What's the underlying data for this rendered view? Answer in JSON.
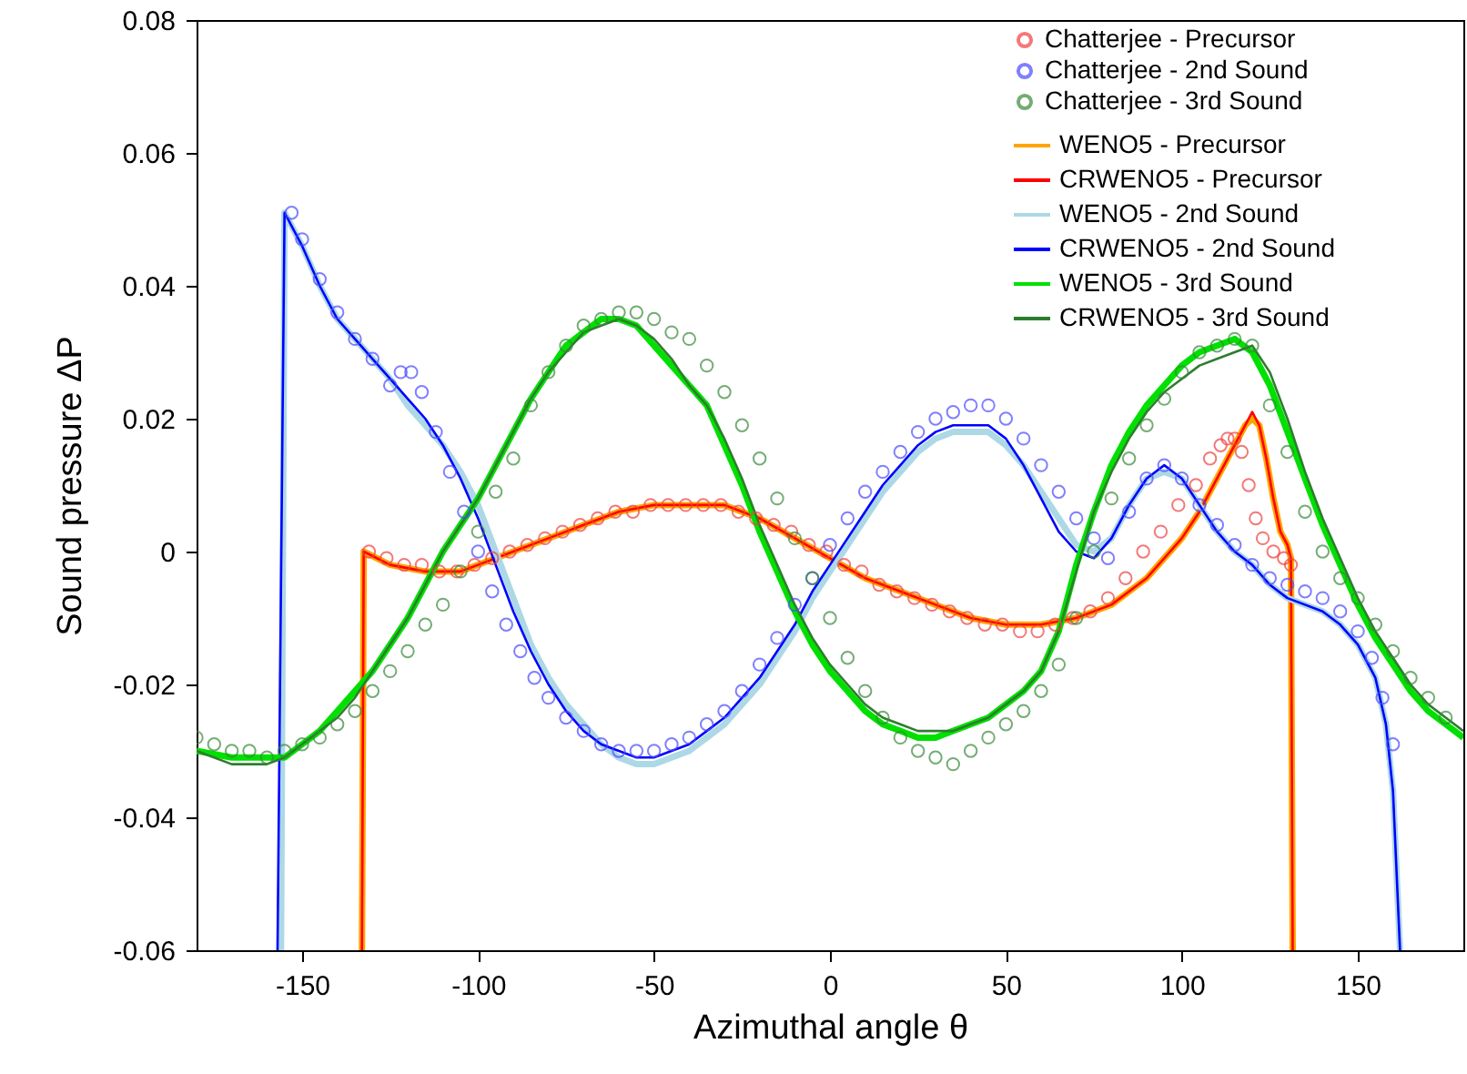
{
  "chart_data": {
    "type": "line",
    "xlabel": "Azimuthal angle θ",
    "ylabel": "Sound pressure ΔP",
    "xlim": [
      -180,
      180
    ],
    "ylim": [
      -0.06,
      0.08
    ],
    "xticks": [
      -150,
      -100,
      -50,
      0,
      50,
      100,
      150
    ],
    "yticks": [
      -0.06,
      -0.04,
      -0.02,
      0,
      0.02,
      0.04,
      0.06,
      0.08
    ],
    "grid": false,
    "legend": "top right",
    "line_style": "solid",
    "series": [
      {
        "name": "Chatterjee - Precursor",
        "type": "scatter",
        "marker": "circle",
        "color": "#f04040",
        "x": [
          -131,
          -126,
          -121,
          -116,
          -111,
          -106,
          -101,
          -96,
          -91,
          -86,
          -81,
          -76,
          -71,
          -66,
          -61,
          -56,
          -51,
          -46,
          -41,
          -36,
          -31,
          -26,
          -21,
          -16,
          -11,
          -6,
          -1,
          4,
          9,
          14,
          19,
          24,
          29,
          34,
          39,
          44,
          49,
          54,
          59,
          64,
          69,
          74,
          79,
          84,
          89,
          94,
          99,
          104,
          108,
          111,
          113,
          115,
          117,
          119,
          121,
          123,
          126,
          129,
          131
        ],
        "values": [
          0.0,
          -0.001,
          -0.002,
          -0.002,
          -0.003,
          -0.003,
          -0.002,
          -0.001,
          0.0,
          0.001,
          0.002,
          0.003,
          0.004,
          0.005,
          0.006,
          0.006,
          0.007,
          0.007,
          0.007,
          0.007,
          0.007,
          0.006,
          0.005,
          0.004,
          0.003,
          0.001,
          0.0,
          -0.002,
          -0.003,
          -0.005,
          -0.006,
          -0.007,
          -0.008,
          -0.009,
          -0.01,
          -0.011,
          -0.011,
          -0.012,
          -0.012,
          -0.011,
          -0.01,
          -0.009,
          -0.007,
          -0.004,
          0.0,
          0.003,
          0.007,
          0.01,
          0.014,
          0.016,
          0.017,
          0.017,
          0.015,
          0.01,
          0.005,
          0.002,
          0.0,
          -0.001,
          -0.002
        ]
      },
      {
        "name": "Chatterjee - 2nd Sound",
        "type": "scatter",
        "marker": "circle",
        "color": "#4a4aff",
        "x": [
          -153,
          -150,
          -145,
          -140,
          -135,
          -130,
          -125,
          -122,
          -119,
          -116,
          -112,
          -108,
          -104,
          -100,
          -96,
          -92,
          -88,
          -84,
          -80,
          -75,
          -70,
          -65,
          -60,
          -55,
          -50,
          -45,
          -40,
          -35,
          -30,
          -25,
          -20,
          -15,
          -10,
          -5,
          0,
          5,
          10,
          15,
          20,
          25,
          30,
          35,
          40,
          45,
          50,
          55,
          60,
          65,
          70,
          75,
          79,
          85,
          90,
          95,
          100,
          105,
          110,
          115,
          120,
          125,
          130,
          135,
          140,
          145,
          150,
          154,
          157,
          160
        ],
        "values": [
          0.051,
          0.047,
          0.041,
          0.036,
          0.032,
          0.029,
          0.025,
          0.027,
          0.027,
          0.024,
          0.018,
          0.012,
          0.006,
          0.0,
          -0.006,
          -0.011,
          -0.015,
          -0.019,
          -0.022,
          -0.025,
          -0.027,
          -0.029,
          -0.03,
          -0.03,
          -0.03,
          -0.029,
          -0.028,
          -0.026,
          -0.024,
          -0.021,
          -0.017,
          -0.013,
          -0.008,
          -0.004,
          0.001,
          0.005,
          0.009,
          0.012,
          0.015,
          0.018,
          0.02,
          0.021,
          0.022,
          0.022,
          0.02,
          0.017,
          0.013,
          0.009,
          0.005,
          0.002,
          -0.001,
          0.006,
          0.011,
          0.013,
          0.011,
          0.007,
          0.004,
          0.001,
          -0.002,
          -0.004,
          -0.005,
          -0.006,
          -0.007,
          -0.009,
          -0.012,
          -0.016,
          -0.022,
          -0.029
        ]
      },
      {
        "name": "Chatterjee - 3rd Sound",
        "type": "scatter",
        "marker": "circle",
        "color": "#3a8a3a",
        "x": [
          -180,
          -175,
          -170,
          -165,
          -160,
          -155,
          -150,
          -145,
          -140,
          -135,
          -130,
          -125,
          -120,
          -115,
          -110,
          -105,
          -100,
          -95,
          -90,
          -85,
          -80,
          -75,
          -70,
          -65,
          -60,
          -55,
          -50,
          -45,
          -40,
          -35,
          -30,
          -25,
          -20,
          -15,
          -10,
          -5,
          0,
          5,
          10,
          15,
          20,
          25,
          30,
          35,
          40,
          45,
          50,
          55,
          60,
          65,
          70,
          75,
          80,
          85,
          90,
          95,
          100,
          105,
          110,
          115,
          120,
          125,
          130,
          135,
          140,
          145,
          150,
          155,
          160,
          165,
          170,
          175
        ],
        "values": [
          -0.028,
          -0.029,
          -0.03,
          -0.03,
          -0.031,
          -0.03,
          -0.029,
          -0.028,
          -0.026,
          -0.024,
          -0.021,
          -0.018,
          -0.015,
          -0.011,
          -0.008,
          -0.003,
          0.003,
          0.009,
          0.014,
          0.022,
          0.027,
          0.031,
          0.034,
          0.035,
          0.036,
          0.036,
          0.035,
          0.033,
          0.032,
          0.028,
          0.024,
          0.019,
          0.014,
          0.008,
          0.002,
          -0.004,
          -0.01,
          -0.016,
          -0.021,
          -0.025,
          -0.028,
          -0.03,
          -0.031,
          -0.032,
          -0.03,
          -0.028,
          -0.026,
          -0.024,
          -0.021,
          -0.017,
          -0.01,
          0.0,
          0.008,
          0.014,
          0.019,
          0.023,
          0.027,
          0.03,
          0.031,
          0.032,
          0.031,
          0.022,
          0.015,
          0.006,
          0.0,
          -0.004,
          -0.007,
          -0.011,
          -0.015,
          -0.019,
          -0.022,
          -0.025
        ]
      },
      {
        "name": "WENO5 - Precursor",
        "color": "#ffa500",
        "x": [
          -133,
          -132.5,
          -125,
          -115,
          -105,
          -100,
          -90,
          -80,
          -70,
          -60,
          -50,
          -40,
          -30,
          -20,
          -10,
          0,
          10,
          20,
          30,
          40,
          50,
          60,
          70,
          80,
          90,
          100,
          105,
          110,
          115,
          118,
          120,
          122,
          124,
          126,
          128,
          130,
          131,
          131.5
        ],
        "values": [
          -0.06,
          0.0,
          -0.002,
          -0.003,
          -0.003,
          -0.002,
          0.0,
          0.002,
          0.004,
          0.006,
          0.007,
          0.007,
          0.007,
          0.005,
          0.002,
          -0.001,
          -0.004,
          -0.006,
          -0.008,
          -0.01,
          -0.011,
          -0.011,
          -0.01,
          -0.008,
          -0.004,
          0.002,
          0.006,
          0.011,
          0.016,
          0.019,
          0.02,
          0.019,
          0.014,
          0.008,
          0.003,
          0.001,
          -0.001,
          -0.06
        ]
      },
      {
        "name": "CRWENO5 - Precursor",
        "color": "#ff0000",
        "x": [
          -133,
          -132.5,
          -125,
          -115,
          -105,
          -100,
          -90,
          -80,
          -70,
          -60,
          -50,
          -40,
          -30,
          -20,
          -10,
          0,
          10,
          20,
          30,
          40,
          50,
          60,
          70,
          80,
          90,
          100,
          105,
          110,
          115,
          118,
          120,
          122,
          124,
          126,
          128,
          130,
          131,
          131.5
        ],
        "values": [
          -0.06,
          0.0,
          -0.002,
          -0.003,
          -0.003,
          -0.002,
          0.0,
          0.002,
          0.004,
          0.006,
          0.007,
          0.007,
          0.007,
          0.005,
          0.002,
          -0.001,
          -0.004,
          -0.006,
          -0.008,
          -0.01,
          -0.011,
          -0.011,
          -0.01,
          -0.008,
          -0.004,
          0.002,
          0.006,
          0.011,
          0.016,
          0.019,
          0.021,
          0.019,
          0.014,
          0.008,
          0.003,
          0.001,
          -0.001,
          -0.06
        ]
      },
      {
        "name": "WENO5 - 2nd Sound",
        "color": "#add8e6",
        "x": [
          -156,
          -155,
          -150,
          -145,
          -140,
          -135,
          -130,
          -125,
          -120,
          -115,
          -110,
          -105,
          -100,
          -95,
          -90,
          -85,
          -80,
          -75,
          -70,
          -65,
          -60,
          -55,
          -50,
          -45,
          -40,
          -35,
          -30,
          -25,
          -20,
          -15,
          -10,
          -5,
          0,
          5,
          10,
          15,
          20,
          25,
          30,
          35,
          40,
          45,
          50,
          55,
          60,
          65,
          70,
          75,
          80,
          85,
          90,
          95,
          100,
          105,
          110,
          115,
          120,
          125,
          130,
          135,
          140,
          145,
          150,
          155,
          158,
          160,
          162
        ],
        "values": [
          -0.06,
          0.051,
          0.046,
          0.04,
          0.035,
          0.032,
          0.029,
          0.026,
          0.022,
          0.019,
          0.016,
          0.012,
          0.007,
          0.0,
          -0.007,
          -0.014,
          -0.019,
          -0.023,
          -0.026,
          -0.029,
          -0.031,
          -0.032,
          -0.032,
          -0.031,
          -0.03,
          -0.028,
          -0.026,
          -0.023,
          -0.02,
          -0.016,
          -0.012,
          -0.007,
          -0.003,
          0.001,
          0.005,
          0.009,
          0.012,
          0.015,
          0.017,
          0.018,
          0.018,
          0.018,
          0.016,
          0.013,
          0.009,
          0.005,
          0.001,
          0.0,
          0.002,
          0.007,
          0.011,
          0.012,
          0.011,
          0.007,
          0.003,
          0.0,
          -0.002,
          -0.005,
          -0.007,
          -0.008,
          -0.009,
          -0.011,
          -0.014,
          -0.019,
          -0.026,
          -0.036,
          -0.06
        ]
      },
      {
        "name": "CRWENO5 - 2nd Sound",
        "color": "#0000ff",
        "x": [
          -157,
          -155,
          -150,
          -145,
          -140,
          -135,
          -130,
          -125,
          -120,
          -115,
          -110,
          -105,
          -100,
          -95,
          -90,
          -85,
          -80,
          -75,
          -70,
          -65,
          -60,
          -55,
          -50,
          -45,
          -40,
          -35,
          -30,
          -25,
          -20,
          -15,
          -10,
          -5,
          0,
          5,
          10,
          15,
          20,
          25,
          30,
          35,
          40,
          45,
          50,
          55,
          60,
          65,
          70,
          75,
          80,
          85,
          90,
          95,
          100,
          105,
          110,
          115,
          120,
          125,
          130,
          135,
          140,
          145,
          150,
          155,
          158,
          160,
          162
        ],
        "values": [
          -0.06,
          0.051,
          0.046,
          0.04,
          0.035,
          0.032,
          0.029,
          0.026,
          0.023,
          0.02,
          0.016,
          0.011,
          0.005,
          -0.002,
          -0.009,
          -0.015,
          -0.02,
          -0.024,
          -0.027,
          -0.029,
          -0.03,
          -0.031,
          -0.031,
          -0.03,
          -0.029,
          -0.027,
          -0.025,
          -0.022,
          -0.019,
          -0.015,
          -0.011,
          -0.006,
          -0.002,
          0.002,
          0.006,
          0.01,
          0.013,
          0.016,
          0.018,
          0.019,
          0.019,
          0.019,
          0.017,
          0.013,
          0.008,
          0.003,
          0.0,
          -0.001,
          0.002,
          0.007,
          0.011,
          0.013,
          0.011,
          0.007,
          0.003,
          0.0,
          -0.002,
          -0.005,
          -0.007,
          -0.008,
          -0.009,
          -0.011,
          -0.014,
          -0.019,
          -0.026,
          -0.036,
          -0.06
        ]
      },
      {
        "name": "WENO5 - 3rd Sound",
        "color": "#00e000",
        "x": [
          -180,
          -170,
          -165,
          -160,
          -155,
          -150,
          -145,
          -140,
          -135,
          -130,
          -125,
          -120,
          -115,
          -110,
          -105,
          -100,
          -95,
          -90,
          -85,
          -80,
          -75,
          -70,
          -65,
          -60,
          -55,
          -50,
          -45,
          -40,
          -35,
          -30,
          -25,
          -20,
          -15,
          -10,
          -5,
          0,
          5,
          10,
          15,
          20,
          25,
          30,
          35,
          40,
          45,
          50,
          55,
          60,
          65,
          70,
          75,
          80,
          85,
          90,
          95,
          100,
          105,
          110,
          115,
          120,
          125,
          130,
          135,
          140,
          145,
          150,
          155,
          160,
          165,
          170,
          175,
          180
        ],
        "values": [
          -0.03,
          -0.031,
          -0.031,
          -0.031,
          -0.031,
          -0.029,
          -0.027,
          -0.024,
          -0.021,
          -0.018,
          -0.014,
          -0.01,
          -0.005,
          0.0,
          0.004,
          0.008,
          0.013,
          0.018,
          0.023,
          0.027,
          0.031,
          0.033,
          0.035,
          0.035,
          0.034,
          0.031,
          0.028,
          0.025,
          0.022,
          0.016,
          0.01,
          0.003,
          -0.003,
          -0.009,
          -0.014,
          -0.018,
          -0.021,
          -0.024,
          -0.026,
          -0.027,
          -0.028,
          -0.028,
          -0.027,
          -0.026,
          -0.025,
          -0.023,
          -0.021,
          -0.018,
          -0.012,
          -0.002,
          0.006,
          0.013,
          0.018,
          0.022,
          0.025,
          0.028,
          0.03,
          0.031,
          0.032,
          0.03,
          0.025,
          0.018,
          0.011,
          0.004,
          -0.002,
          -0.008,
          -0.013,
          -0.017,
          -0.021,
          -0.024,
          -0.026,
          -0.028
        ]
      },
      {
        "name": "CRWENO5 - 3rd Sound",
        "color": "#2e7d2e",
        "x": [
          -180,
          -170,
          -165,
          -160,
          -155,
          -150,
          -145,
          -140,
          -135,
          -130,
          -125,
          -120,
          -115,
          -110,
          -105,
          -100,
          -95,
          -90,
          -85,
          -80,
          -75,
          -70,
          -65,
          -60,
          -55,
          -50,
          -45,
          -40,
          -35,
          -30,
          -25,
          -20,
          -15,
          -10,
          -5,
          0,
          5,
          10,
          15,
          20,
          25,
          30,
          35,
          40,
          45,
          50,
          55,
          60,
          65,
          70,
          75,
          80,
          85,
          90,
          95,
          100,
          105,
          110,
          115,
          120,
          125,
          130,
          135,
          140,
          145,
          150,
          155,
          160,
          165,
          170,
          175,
          180
        ],
        "values": [
          -0.03,
          -0.032,
          -0.032,
          -0.032,
          -0.031,
          -0.029,
          -0.027,
          -0.025,
          -0.022,
          -0.018,
          -0.014,
          -0.01,
          -0.005,
          0.0,
          0.004,
          0.008,
          0.013,
          0.018,
          0.023,
          0.027,
          0.03,
          0.033,
          0.034,
          0.035,
          0.034,
          0.032,
          0.029,
          0.025,
          0.022,
          0.017,
          0.011,
          0.004,
          -0.002,
          -0.008,
          -0.013,
          -0.017,
          -0.02,
          -0.023,
          -0.025,
          -0.026,
          -0.027,
          -0.027,
          -0.027,
          -0.026,
          -0.025,
          -0.023,
          -0.021,
          -0.018,
          -0.012,
          -0.003,
          0.006,
          0.012,
          0.017,
          0.021,
          0.024,
          0.026,
          0.028,
          0.029,
          0.03,
          0.031,
          0.027,
          0.02,
          0.012,
          0.005,
          -0.001,
          -0.007,
          -0.012,
          -0.016,
          -0.02,
          -0.023,
          -0.025,
          -0.027
        ]
      }
    ]
  }
}
